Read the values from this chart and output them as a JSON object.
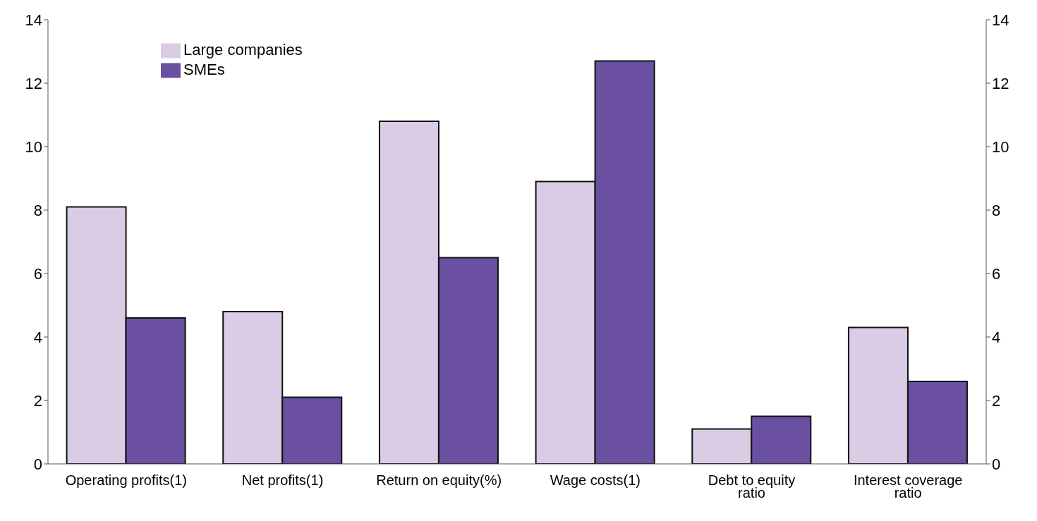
{
  "chart_data": {
    "type": "bar",
    "categories": [
      "Operating profits(1)",
      "Net profits(1)",
      "Return on equity(%)",
      "Wage costs(1)",
      "Debt to equity\nratio",
      "Interest coverage\nratio"
    ],
    "series": [
      {
        "name": "Large companies",
        "color": "#d9cce4",
        "values": [
          8.1,
          4.8,
          10.8,
          8.9,
          1.1,
          4.3
        ]
      },
      {
        "name": "SMEs",
        "color": "#6b50a2",
        "values": [
          4.6,
          2.1,
          6.5,
          12.7,
          1.5,
          2.6
        ]
      }
    ],
    "ylim": [
      0,
      14
    ],
    "yticks": [
      0,
      2,
      4,
      6,
      8,
      10,
      12,
      14
    ],
    "y2lim": [
      0,
      14
    ],
    "y2ticks": [
      0,
      2,
      4,
      6,
      8,
      10,
      12,
      14
    ],
    "grid": false,
    "legend": "top left"
  }
}
